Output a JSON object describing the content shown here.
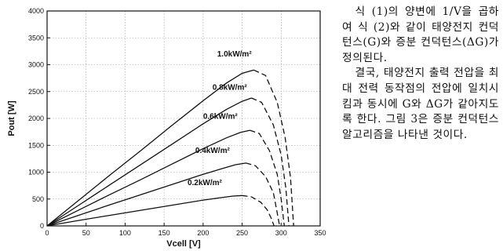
{
  "text_column": {
    "paragraphs": [
      "식 (1)의 양변에 1/V을 곱하여 식 (2)와 같이 태양전지 컨덕턴스(G)와 증분 컨덕턴스(ΔG)가 정의된다.",
      "결국, 태양전지 출력 전압을 최대 전력 동작점의 전압에 일치시킴과 동시에 G와 ΔG가 같아지도록 한다. 그림 3은 증분 컨덕턴스 알고리즘을 나타낸 것이다."
    ]
  },
  "chart_data": {
    "type": "line",
    "title": "",
    "xlabel": "Vcell [V]",
    "ylabel": "Pout [W]",
    "xlim": [
      0,
      350
    ],
    "ylim": [
      0,
      4000
    ],
    "x_ticks": [
      0,
      50,
      100,
      150,
      200,
      250,
      300,
      350
    ],
    "x_tick_labels": [
      "0",
      "50",
      "100",
      "150",
      "200",
      "250",
      "300",
      "350"
    ],
    "y_ticks": [
      0,
      500,
      1000,
      1500,
      2000,
      2500,
      3000,
      3500,
      4000
    ],
    "y_tick_labels": [
      "0",
      "500",
      "1000",
      "1500",
      "2000",
      "2500",
      "3000",
      "3500",
      "4000"
    ],
    "grid": true,
    "series": [
      {
        "name": "1.0kW/m²",
        "label_at": [
          218,
          3150
        ],
        "x": [
          0,
          40,
          80,
          120,
          160,
          200,
          230,
          250,
          265,
          280,
          295,
          305,
          312,
          316
        ],
        "y": [
          0,
          470,
          940,
          1400,
          1870,
          2330,
          2660,
          2840,
          2900,
          2800,
          2300,
          1650,
          900,
          0
        ]
      },
      {
        "name": "0.8kW/m²",
        "label_at": [
          212,
          2530
        ],
        "x": [
          0,
          40,
          80,
          120,
          160,
          200,
          230,
          250,
          262,
          275,
          290,
          300,
          306,
          310
        ],
        "y": [
          0,
          380,
          760,
          1140,
          1520,
          1900,
          2170,
          2320,
          2380,
          2300,
          1880,
          1320,
          700,
          0
        ]
      },
      {
        "name": "0.6kW/m²",
        "label_at": [
          200,
          1990
        ],
        "x": [
          0,
          40,
          80,
          120,
          160,
          200,
          230,
          248,
          260,
          272,
          285,
          295,
          300,
          304
        ],
        "y": [
          0,
          290,
          580,
          860,
          1150,
          1440,
          1640,
          1740,
          1780,
          1720,
          1400,
          960,
          500,
          0
        ]
      },
      {
        "name": "0.4kW/m²",
        "label_at": [
          190,
          1360
        ],
        "x": [
          0,
          40,
          80,
          120,
          160,
          200,
          225,
          242,
          255,
          267,
          280,
          290,
          294,
          298
        ],
        "y": [
          0,
          195,
          390,
          580,
          770,
          960,
          1070,
          1140,
          1170,
          1120,
          920,
          620,
          320,
          0
        ]
      },
      {
        "name": "0.2kW/m²",
        "label_at": [
          180,
          760
        ],
        "x": [
          0,
          40,
          80,
          120,
          160,
          200,
          220,
          238,
          250,
          262,
          274,
          282,
          287,
          291
        ],
        "y": [
          0,
          100,
          195,
          290,
          385,
          480,
          520,
          555,
          565,
          540,
          440,
          300,
          150,
          0
        ]
      }
    ]
  }
}
